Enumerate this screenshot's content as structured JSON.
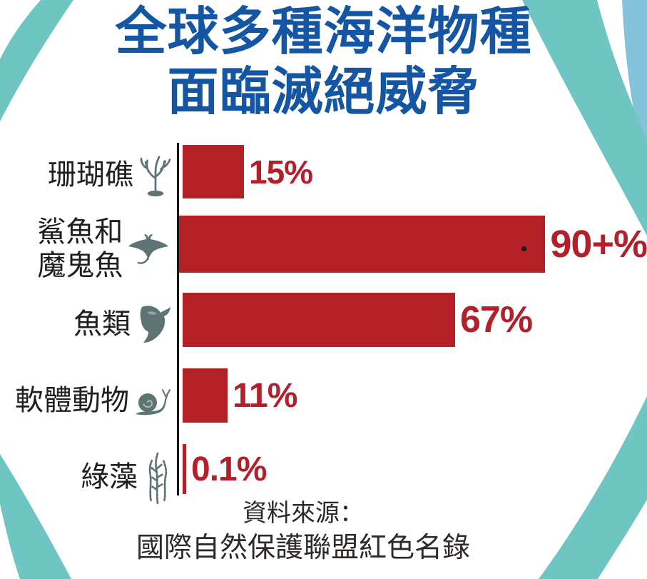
{
  "title": {
    "line1": "全球多種海洋物種",
    "line2": "面臨滅絕威脅",
    "color": "#1456a4"
  },
  "chart_data": {
    "type": "bar",
    "orientation": "horizontal",
    "title": "全球多種海洋物種面臨滅絕威脅",
    "categories": [
      "珊瑚礁",
      "鯊魚和\n魔鬼魚",
      "魚類",
      "軟體動物",
      "綠藻"
    ],
    "values": [
      15,
      90,
      67,
      11,
      0.1
    ],
    "value_labels": [
      "15%",
      "90+%",
      "67%",
      "11%",
      "0.1%"
    ],
    "icons": [
      "coral-icon",
      "manta-ray-icon",
      "fish-icon",
      "snail-icon",
      "seaweed-icon"
    ],
    "bar_color": "#b32127",
    "value_label_color": "#b2212b",
    "axis_color": "#141414",
    "xlim": [
      0,
      100
    ],
    "grid": false,
    "legend": false
  },
  "source": {
    "line1": "資料來源：",
    "line2": "國際自然保護聯盟紅色名錄"
  },
  "decor": {
    "ring_color": "#6fc5c2",
    "corner_accent_color": "#84c3d9",
    "icon_color": "#5d7473"
  }
}
